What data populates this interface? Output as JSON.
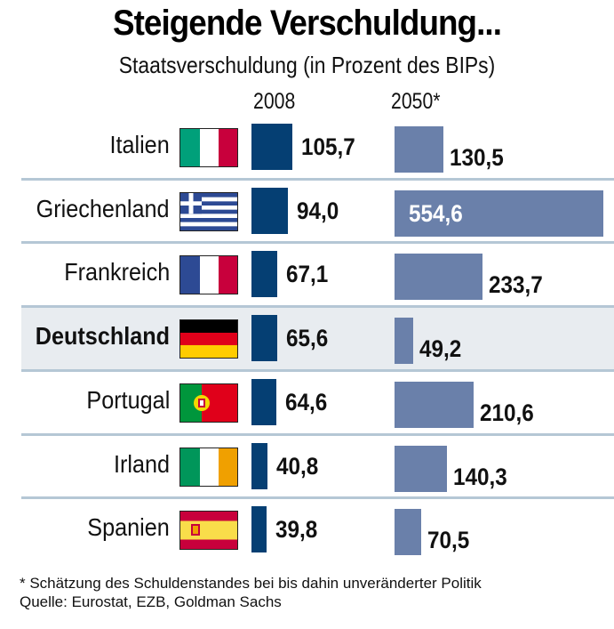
{
  "chart_data": {
    "type": "bar",
    "orientation": "horizontal",
    "title": "Steigende Verschuldung...",
    "subtitle": "Staatsverschuldung (in Prozent des BIPs)",
    "categories": [
      "Italien",
      "Griechenland",
      "Frankreich",
      "Deutschland",
      "Portugal",
      "Irland",
      "Spanien"
    ],
    "highlight": "Deutschland",
    "series": [
      {
        "name": "2008",
        "color": "#053f73",
        "values": [
          105.7,
          94.0,
          67.1,
          65.6,
          64.6,
          40.8,
          39.8
        ],
        "labels": [
          "105,7",
          "94,0",
          "67,1",
          "65,6",
          "64,6",
          "40,8",
          "39,8"
        ]
      },
      {
        "name": "2050*",
        "color": "#6a80aa",
        "values": [
          130.5,
          554.6,
          233.7,
          49.2,
          210.6,
          140.3,
          70.5
        ],
        "labels": [
          "130,5",
          "554,6",
          "233,7",
          "49,2",
          "210,6",
          "140,3",
          "70,5"
        ]
      }
    ],
    "flags": [
      "italy-flag",
      "greece-flag",
      "france-flag",
      "germany-flag",
      "portugal-flag",
      "ireland-flag",
      "spain-flag"
    ],
    "footnote": "* Schätzung des Schuldenstandes bei bis dahin unveränderter Politik",
    "source": "Quelle: Eurostat, EZB, Goldman Sachs"
  }
}
